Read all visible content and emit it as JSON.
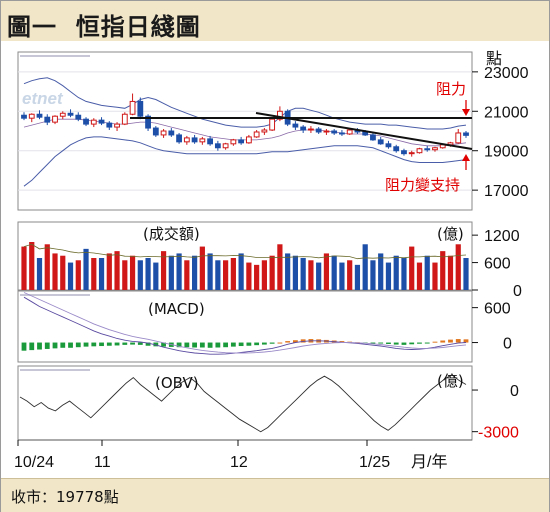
{
  "title": "圖一  恒指日綫圖",
  "footer": "收市：19778點",
  "colors": {
    "up": "#d01818",
    "down": "#1d4ea8",
    "macd_pos": "#e0761e",
    "macd_neg": "#1a9a3a",
    "band": "#4a5da8",
    "resistance": "#111111",
    "annotation": "#e00000"
  },
  "watermark": "etnet",
  "panels": {
    "price": {
      "unit": "點",
      "ticks": [
        "23000",
        "21000",
        "19000",
        "17000"
      ]
    },
    "volume": {
      "name": "(成交額)",
      "unit": "(億)",
      "ticks": [
        "1200",
        "600",
        "0"
      ]
    },
    "macd": {
      "name": "(MACD)",
      "ticks": [
        "600",
        "0"
      ]
    },
    "obv": {
      "name": "(OBV)",
      "unit": "(億)",
      "ticks": [
        "0",
        "-3000"
      ]
    }
  },
  "annotations": {
    "resistance": "阻力",
    "support": "阻力變支持"
  },
  "x_axis": {
    "ticks": [
      "10/24",
      "11",
      "12",
      "1/25"
    ],
    "unit": "月/年"
  },
  "chart_data": [
    {
      "type": "candlestick",
      "ylabel": "點",
      "ylim": [
        16500,
        23500
      ],
      "ohlc": [
        [
          20800,
          20950,
          20550,
          20650
        ],
        [
          20650,
          20900,
          20450,
          20850
        ],
        [
          20850,
          21050,
          20600,
          20700
        ],
        [
          20700,
          20850,
          20300,
          20450
        ],
        [
          20450,
          20800,
          20350,
          20750
        ],
        [
          20750,
          21000,
          20600,
          20900
        ],
        [
          20900,
          21100,
          20700,
          20800
        ],
        [
          20800,
          20950,
          20500,
          20600
        ],
        [
          20600,
          20700,
          20250,
          20350
        ],
        [
          20350,
          20650,
          20200,
          20550
        ],
        [
          20550,
          20700,
          20300,
          20400
        ],
        [
          20400,
          20500,
          20050,
          20200
        ],
        [
          20200,
          20450,
          20000,
          20350
        ],
        [
          20350,
          20950,
          20300,
          20850
        ],
        [
          20850,
          21900,
          20800,
          21500
        ],
        [
          21500,
          21700,
          20600,
          20750
        ],
        [
          20750,
          20850,
          20000,
          20150
        ],
        [
          20150,
          20250,
          19700,
          19800
        ],
        [
          19800,
          20100,
          19650,
          20000
        ],
        [
          20000,
          20150,
          19700,
          19800
        ],
        [
          19800,
          19900,
          19350,
          19450
        ],
        [
          19450,
          19750,
          19300,
          19650
        ],
        [
          19650,
          19800,
          19350,
          19450
        ],
        [
          19450,
          19700,
          19300,
          19600
        ],
        [
          19600,
          19750,
          19250,
          19350
        ],
        [
          19350,
          19500,
          19000,
          19150
        ],
        [
          19150,
          19400,
          19050,
          19350
        ],
        [
          19350,
          19600,
          19250,
          19550
        ],
        [
          19550,
          19700,
          19300,
          19400
        ],
        [
          19400,
          19800,
          19350,
          19700
        ],
        [
          19700,
          20050,
          19650,
          19950
        ],
        [
          19950,
          20150,
          19800,
          20050
        ],
        [
          20050,
          20700,
          20000,
          20600
        ],
        [
          20600,
          21250,
          20500,
          21000
        ],
        [
          21000,
          21100,
          20250,
          20350
        ],
        [
          20350,
          20500,
          20050,
          20200
        ],
        [
          20200,
          20300,
          19900,
          20050
        ],
        [
          20050,
          20250,
          19900,
          20100
        ],
        [
          20100,
          20200,
          19850,
          19950
        ],
        [
          19950,
          20100,
          19800,
          20000
        ],
        [
          20000,
          20100,
          19800,
          19900
        ],
        [
          19900,
          20050,
          19750,
          19850
        ],
        [
          19850,
          20100,
          19800,
          20050
        ],
        [
          20050,
          20150,
          19850,
          19950
        ],
        [
          19950,
          20050,
          19750,
          19800
        ],
        [
          19800,
          19900,
          19500,
          19550
        ],
        [
          19550,
          19700,
          19300,
          19350
        ],
        [
          19350,
          19500,
          19100,
          19200
        ],
        [
          19200,
          19300,
          18900,
          19000
        ],
        [
          19000,
          19100,
          18750,
          18850
        ],
        [
          18850,
          19000,
          18700,
          18900
        ],
        [
          18900,
          19150,
          18850,
          19100
        ],
        [
          19100,
          19250,
          18950,
          19050
        ],
        [
          19050,
          19200,
          18950,
          19150
        ],
        [
          19150,
          19350,
          19100,
          19300
        ],
        [
          19300,
          19450,
          19200,
          19400
        ],
        [
          19400,
          20100,
          19350,
          19900
        ],
        [
          19900,
          20000,
          19650,
          19780
        ]
      ],
      "upper_band": [
        22400,
        22550,
        22650,
        22700,
        22550,
        22300,
        22000,
        21700,
        21500,
        21400,
        21300,
        21250,
        21200,
        21150,
        21350,
        21600,
        21700,
        21600,
        21400,
        21200,
        21050,
        20900,
        20750,
        20600,
        20500,
        20400,
        20300,
        20250,
        20200,
        20200,
        20200,
        20250,
        20350,
        20700,
        21000,
        21150,
        21150,
        21050,
        20950,
        20800,
        20650,
        20550,
        20450,
        20400,
        20350,
        20350,
        20350,
        20300,
        20300,
        20250,
        20200,
        20150,
        20100,
        20100,
        20100,
        20150,
        20250,
        20300
      ],
      "lower_band": [
        17200,
        17500,
        17900,
        18300,
        18700,
        19000,
        19300,
        19500,
        19650,
        19700,
        19700,
        19650,
        19600,
        19550,
        19500,
        19400,
        19250,
        19100,
        19000,
        18950,
        18900,
        18850,
        18850,
        18850,
        18850,
        18850,
        18850,
        18850,
        18850,
        18850,
        18850,
        18900,
        18950,
        18950,
        18950,
        19000,
        19050,
        19100,
        19150,
        19200,
        19250,
        19250,
        19250,
        19250,
        19200,
        19150,
        19000,
        18850,
        18700,
        18550,
        18450,
        18400,
        18400,
        18400,
        18400,
        18450,
        18500,
        18550
      ],
      "moving_average": [
        20200,
        20300,
        20400,
        20500,
        20600,
        20600,
        20600,
        20600,
        20550,
        20500,
        20450,
        20400,
        20350,
        20350,
        20400,
        20450,
        20450,
        20400,
        20300,
        20200,
        20100,
        20000,
        19900,
        19800,
        19700,
        19650,
        19600,
        19550,
        19550,
        19550,
        19550,
        19600,
        19650,
        19750,
        19900,
        20000,
        20050,
        20050,
        20050,
        20000,
        19950,
        19900,
        19850,
        19850,
        19850,
        19800,
        19750,
        19650,
        19550,
        19450,
        19350,
        19300,
        19250,
        19250,
        19250,
        19300,
        19350,
        19400
      ]
    },
    {
      "type": "bar",
      "ylabel": "億",
      "ylim": [
        0,
        1400
      ],
      "values": [
        950,
        1050,
        700,
        1000,
        800,
        750,
        600,
        650,
        900,
        700,
        700,
        800,
        850,
        650,
        750,
        650,
        700,
        600,
        850,
        750,
        800,
        650,
        750,
        950,
        800,
        650,
        650,
        700,
        800,
        600,
        550,
        650,
        750,
        1000,
        800,
        750,
        700,
        650,
        600,
        800,
        750,
        600,
        650,
        550,
        1000,
        650,
        800,
        600,
        750,
        700,
        950,
        600,
        750,
        600,
        850,
        750,
        1000,
        700
      ],
      "up": [
        true,
        true,
        false,
        true,
        true,
        true,
        false,
        true,
        false,
        true,
        false,
        true,
        true,
        true,
        true,
        false,
        false,
        false,
        true,
        false,
        false,
        true,
        false,
        true,
        false,
        false,
        true,
        true,
        false,
        true,
        true,
        true,
        true,
        true,
        false,
        false,
        false,
        true,
        false,
        true,
        false,
        false,
        true,
        false,
        false,
        false,
        false,
        false,
        false,
        false,
        true,
        true,
        false,
        true,
        true,
        true,
        true,
        false
      ]
    },
    {
      "type": "bar",
      "ylim": [
        -300,
        800
      ],
      "macd_hist": [
        -140,
        -130,
        -120,
        -110,
        -100,
        -90,
        -90,
        -80,
        -70,
        -65,
        -60,
        -55,
        -50,
        -40,
        -35,
        -40,
        -55,
        -65,
        -70,
        -75,
        -80,
        -80,
        -85,
        -85,
        -90,
        -85,
        -80,
        -70,
        -60,
        -55,
        -45,
        -35,
        -20,
        0,
        25,
        40,
        55,
        60,
        55,
        45,
        35,
        25,
        15,
        5,
        -5,
        -10,
        -15,
        -25,
        -35,
        -40,
        -30,
        -20,
        -5,
        15,
        35,
        50,
        60,
        55
      ],
      "macd_line": [
        780,
        700,
        620,
        560,
        500,
        440,
        380,
        320,
        260,
        200,
        150,
        110,
        70,
        40,
        20,
        10,
        -10,
        -40,
        -80,
        -110,
        -140,
        -160,
        -180,
        -190,
        -200,
        -200,
        -195,
        -185,
        -170,
        -155,
        -140,
        -120,
        -100,
        -70,
        -30,
        0,
        20,
        30,
        30,
        25,
        15,
        5,
        -5,
        -15,
        -30,
        -45,
        -60,
        -80,
        -100,
        -115,
        -120,
        -115,
        -100,
        -80,
        -55,
        -30,
        -10,
        0
      ],
      "signal_line": [
        860,
        800,
        740,
        680,
        620,
        560,
        500,
        440,
        380,
        320,
        270,
        220,
        180,
        140,
        105,
        80,
        55,
        25,
        -5,
        -35,
        -65,
        -90,
        -115,
        -135,
        -150,
        -165,
        -175,
        -180,
        -180,
        -178,
        -172,
        -162,
        -148,
        -130,
        -108,
        -85,
        -60,
        -40,
        -25,
        -15,
        -5,
        0,
        0,
        -5,
        -12,
        -22,
        -35,
        -50,
        -65,
        -80,
        -92,
        -100,
        -100,
        -95,
        -85,
        -70,
        -55,
        -40
      ]
    },
    {
      "type": "line",
      "ylabel": "億",
      "ylim": [
        -3600,
        1300
      ],
      "values": [
        -500,
        -800,
        -1200,
        -900,
        -1300,
        -1500,
        -1100,
        -800,
        -1200,
        -1600,
        -2000,
        -1500,
        -1000,
        -500,
        0,
        500,
        900,
        400,
        0,
        -400,
        -800,
        -300,
        200,
        600,
        900,
        500,
        -100,
        -500,
        -900,
        -1300,
        -1700,
        -2100,
        -2400,
        -2700,
        -3000,
        -2700,
        -2200,
        -1700,
        -1200,
        -700,
        -200,
        300,
        700,
        1000,
        700,
        300,
        -200,
        -700,
        -1200,
        -1700,
        -2200,
        -2600,
        -2900,
        -2500,
        -2000,
        -1500,
        -1000,
        -500,
        0,
        400,
        800,
        1100,
        700,
        400
      ],
      "hidden_extension": true
    }
  ]
}
